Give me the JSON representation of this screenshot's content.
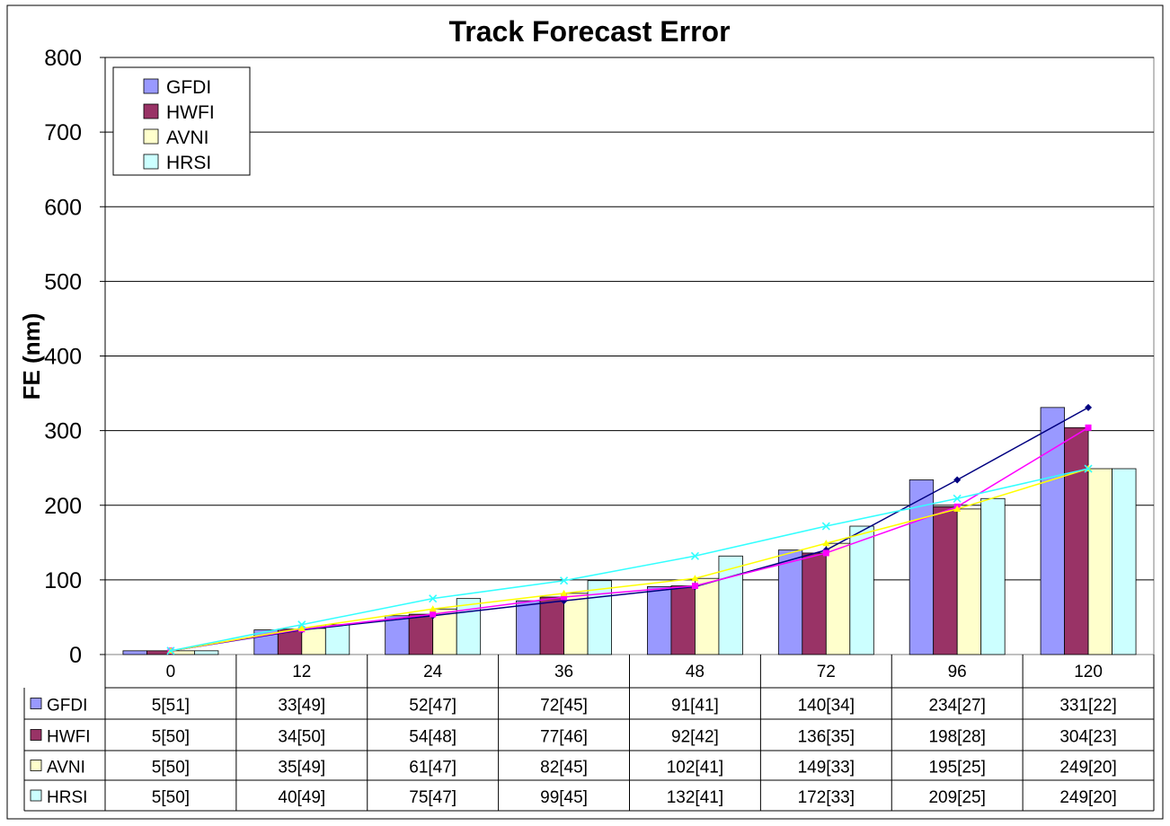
{
  "chart_data": {
    "type": "bar",
    "title": "Track Forecast Error",
    "ylabel": "FE (nm)",
    "xlabel": "",
    "ylim": [
      0,
      800
    ],
    "yticks": [
      0,
      100,
      200,
      300,
      400,
      500,
      600,
      700,
      800
    ],
    "grid": true,
    "legend_position": "top-left",
    "categories": [
      "0",
      "12",
      "24",
      "36",
      "48",
      "72",
      "96",
      "120"
    ],
    "series": [
      {
        "name": "GFDI",
        "color": "#9999ff",
        "line_color": "#000080",
        "values": [
          5,
          33,
          52,
          72,
          91,
          140,
          234,
          331
        ],
        "table": [
          "5[51]",
          "33[49]",
          "52[47]",
          "72[45]",
          "91[41]",
          "140[34]",
          "234[27]",
          "331[22]"
        ]
      },
      {
        "name": "HWFI",
        "color": "#993366",
        "line_color": "#ff00ff",
        "values": [
          5,
          34,
          54,
          77,
          92,
          136,
          198,
          304
        ],
        "table": [
          "5[50]",
          "34[50]",
          "54[48]",
          "77[46]",
          "92[42]",
          "136[35]",
          "198[28]",
          "304[23]"
        ]
      },
      {
        "name": "AVNI",
        "color": "#ffffcc",
        "line_color": "#ffff00",
        "values": [
          5,
          35,
          61,
          82,
          102,
          149,
          195,
          249
        ],
        "table": [
          "5[50]",
          "35[49]",
          "61[47]",
          "82[45]",
          "102[41]",
          "149[33]",
          "195[25]",
          "249[20]"
        ]
      },
      {
        "name": "HRSI",
        "color": "#ccffff",
        "line_color": "#33ffff",
        "values": [
          5,
          40,
          75,
          99,
          132,
          172,
          209,
          249
        ],
        "table": [
          "5[50]",
          "40[49]",
          "75[47]",
          "99[45]",
          "132[41]",
          "172[33]",
          "209[25]",
          "249[20]"
        ]
      }
    ]
  }
}
